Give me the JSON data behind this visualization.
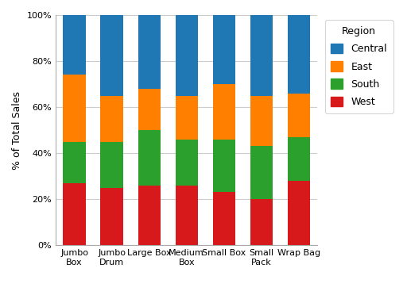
{
  "categories": [
    "Jumbo\nBox",
    "Jumbo\nDrum",
    "Large Box",
    "Medium\nBox",
    "Small Box",
    "Small\nPack",
    "Wrap Bag"
  ],
  "regions_bottom_to_top": [
    "West",
    "South",
    "East",
    "Central"
  ],
  "legend_order": [
    "Central",
    "East",
    "South",
    "West"
  ],
  "colors": {
    "West": "#d7191c",
    "South": "#2ca02c",
    "East": "#ff7f00",
    "Central": "#1f78b4"
  },
  "values": {
    "West": [
      0.27,
      0.25,
      0.26,
      0.26,
      0.23,
      0.2,
      0.28
    ],
    "South": [
      0.18,
      0.2,
      0.24,
      0.2,
      0.23,
      0.23,
      0.19
    ],
    "East": [
      0.29,
      0.2,
      0.18,
      0.19,
      0.24,
      0.22,
      0.19
    ],
    "Central": [
      0.26,
      0.35,
      0.32,
      0.35,
      0.3,
      0.35,
      0.34
    ]
  },
  "ylabel": "% of Total Sales",
  "legend_title": "Region",
  "ylim": [
    0,
    1
  ],
  "yticks": [
    0.0,
    0.2,
    0.4,
    0.6,
    0.8,
    1.0
  ],
  "ytick_labels": [
    "0%",
    "20%",
    "40%",
    "60%",
    "80%",
    "100%"
  ],
  "bar_width": 0.6,
  "background_color": "#ffffff",
  "plot_bg_color": "#ffffff",
  "grid_color": "#cccccc",
  "label_fontsize": 9,
  "tick_fontsize": 8,
  "legend_fontsize": 9
}
